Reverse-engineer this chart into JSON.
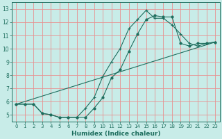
{
  "xlabel": "Humidex (Indice chaleur)",
  "background_color": "#c8ece8",
  "grid_color": "#e89090",
  "line_color": "#1e6e5e",
  "xlim": [
    -0.5,
    23.5
  ],
  "ylim": [
    4.5,
    13.5
  ],
  "xticks": [
    0,
    1,
    2,
    3,
    4,
    5,
    6,
    7,
    8,
    9,
    10,
    11,
    12,
    13,
    14,
    15,
    16,
    17,
    18,
    19,
    20,
    21,
    22,
    23
  ],
  "yticks": [
    5,
    6,
    7,
    8,
    9,
    10,
    11,
    12,
    13
  ],
  "curve_plus_x": [
    0,
    1,
    2,
    3,
    4,
    5,
    6,
    7,
    8,
    9,
    10,
    11,
    12,
    13,
    14,
    15,
    16,
    17,
    18,
    19,
    20,
    21,
    22,
    23
  ],
  "curve_plus_y": [
    5.8,
    5.8,
    5.8,
    5.1,
    5.0,
    4.8,
    4.8,
    4.8,
    5.5,
    6.3,
    7.9,
    9.0,
    10.0,
    11.5,
    12.2,
    12.9,
    12.3,
    12.3,
    11.8,
    11.1,
    10.4,
    10.2,
    10.4,
    10.5
  ],
  "curve_dot_x": [
    0,
    1,
    2,
    3,
    4,
    5,
    6,
    7,
    8,
    9,
    10,
    11,
    12,
    13,
    14,
    15,
    16,
    17,
    18,
    19,
    20,
    21,
    22,
    23
  ],
  "curve_dot_y": [
    5.8,
    5.8,
    5.8,
    5.1,
    5.0,
    4.8,
    4.8,
    4.8,
    4.8,
    5.5,
    6.3,
    7.8,
    8.4,
    9.8,
    11.1,
    12.2,
    12.5,
    12.4,
    12.4,
    10.4,
    10.2,
    10.4,
    10.4,
    10.5
  ],
  "curve_line_x": [
    0,
    23
  ],
  "curve_line_y": [
    5.8,
    10.5
  ]
}
